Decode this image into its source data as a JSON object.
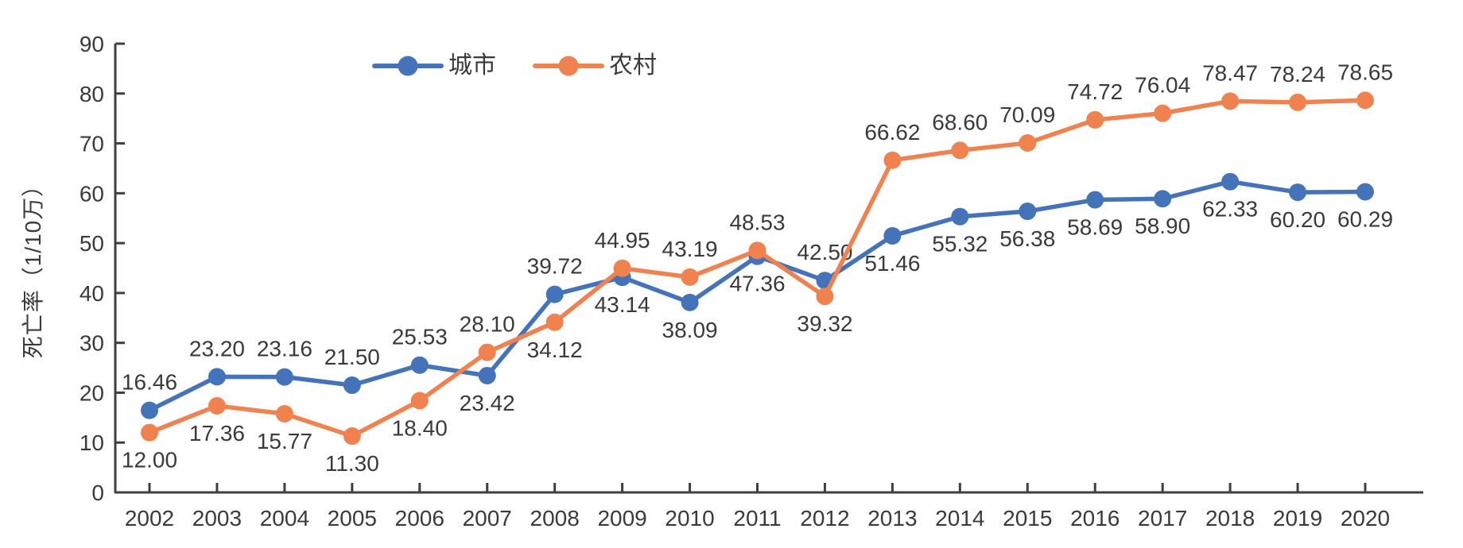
{
  "chart_data": {
    "type": "line",
    "title": "",
    "ylabel": "死亡率（1/10万）",
    "xlabel": "",
    "x": [
      "2002",
      "2003",
      "2004",
      "2005",
      "2006",
      "2007",
      "2008",
      "2009",
      "2010",
      "2011",
      "2012",
      "2013",
      "2014",
      "2015",
      "2016",
      "2017",
      "2018",
      "2019",
      "2020"
    ],
    "ylim": [
      0,
      90
    ],
    "ytick_step": 10,
    "yticks": [
      0,
      10,
      20,
      30,
      40,
      50,
      60,
      70,
      80,
      90
    ],
    "grid": false,
    "legend_position": "top",
    "axis_color": "#3f3f3f",
    "text_color": "#3a3a3a",
    "series": [
      {
        "key": "urban",
        "name": "城市",
        "color": "#4473B9",
        "values": [
          16.46,
          23.2,
          23.16,
          21.5,
          25.53,
          23.42,
          39.72,
          43.14,
          38.09,
          47.36,
          42.5,
          51.46,
          55.32,
          56.38,
          58.69,
          58.9,
          62.33,
          60.2,
          60.29
        ],
        "labels": [
          "16.46",
          "23.20",
          "23.16",
          "21.50",
          "25.53",
          "23.42",
          "39.72",
          "43.14",
          "38.09",
          "47.36",
          "42.50",
          "51.46",
          "55.32",
          "56.38",
          "58.69",
          "58.90",
          "62.33",
          "60.20",
          "60.29"
        ],
        "label_sides": [
          "above",
          "above",
          "above",
          "above",
          "above",
          "below",
          "above",
          "below",
          "below",
          "below",
          "above",
          "below",
          "below",
          "below",
          "below",
          "below",
          "below",
          "below",
          "below"
        ]
      },
      {
        "key": "rural",
        "name": "农村",
        "color": "#EF824F",
        "values": [
          12.0,
          17.36,
          15.77,
          11.3,
          18.4,
          28.1,
          34.12,
          44.95,
          43.19,
          48.53,
          39.32,
          66.62,
          68.6,
          70.09,
          74.72,
          76.04,
          78.47,
          78.24,
          78.65
        ],
        "labels": [
          "12.00",
          "17.36",
          "15.77",
          "11.30",
          "18.40",
          "28.10",
          "34.12",
          "44.95",
          "43.19",
          "48.53",
          "39.32",
          "66.62",
          "68.60",
          "70.09",
          "74.72",
          "76.04",
          "78.47",
          "78.24",
          "78.65"
        ],
        "label_sides": [
          "below",
          "below",
          "below",
          "below",
          "below",
          "above",
          "below",
          "above",
          "above",
          "above",
          "below",
          "above",
          "above",
          "above",
          "above",
          "above",
          "above",
          "above",
          "above"
        ]
      }
    ]
  }
}
